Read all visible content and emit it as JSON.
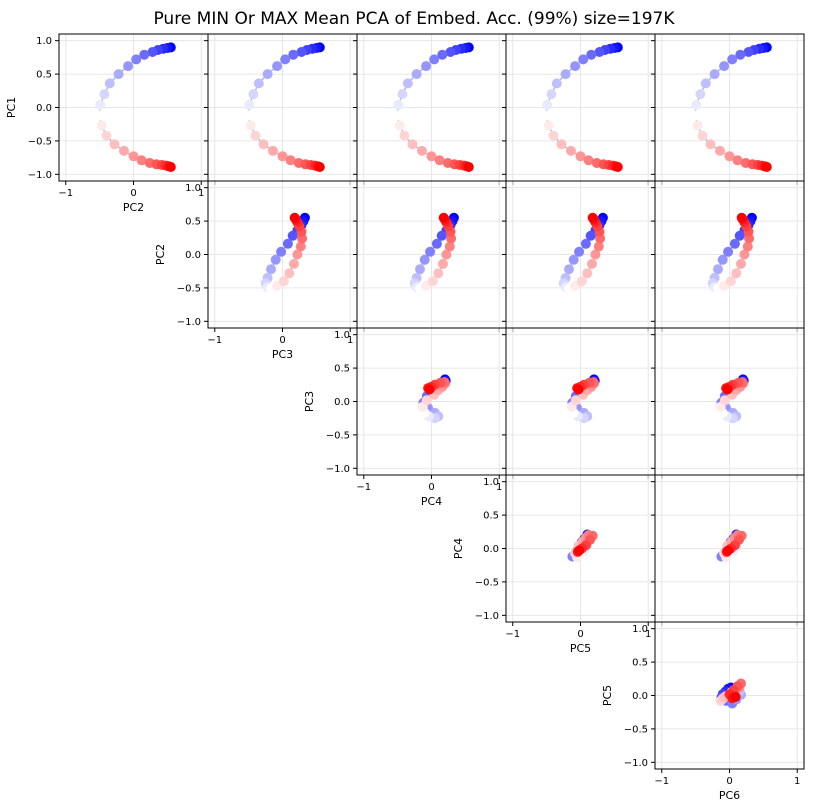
{
  "chart_data": {
    "type": "scatter",
    "title": "Pure MIN Or MAX Mean PCA of Embed. Acc. (99%) size=197K",
    "layout": "pair-plot upper triangle",
    "components": [
      "PC1",
      "PC2",
      "PC3",
      "PC4",
      "PC5",
      "PC6"
    ],
    "axis_range": [
      -1.1,
      1.1
    ],
    "ticks": [
      -1,
      0,
      1
    ],
    "y_ticks": [
      -1.0,
      -0.5,
      0.0,
      0.5,
      1.0
    ],
    "y_tick_labels": [
      "−1.0",
      "−0.5",
      "0.0",
      "0.5",
      "1.0"
    ],
    "x_tick_labels": [
      "−1",
      "0",
      "1"
    ],
    "grid": true,
    "colormap": "bwr (blue → white → red along sequence)",
    "colors": {
      "start": "#0000ff",
      "middle": "#ffffff",
      "end": "#ff0000",
      "line": "#8fb4d4",
      "grid": "#e6e6e6"
    },
    "points": {
      "PC1": [
        0.9,
        0.89,
        0.88,
        0.86,
        0.83,
        0.79,
        0.72,
        0.62,
        0.5,
        0.36,
        0.2,
        0.04,
        -0.12,
        -0.27,
        -0.42,
        -0.55,
        -0.65,
        -0.73,
        -0.79,
        -0.83,
        -0.85,
        -0.86,
        -0.87,
        -0.88,
        -0.89
      ],
      "PC2": [
        0.55,
        0.5,
        0.44,
        0.36,
        0.28,
        0.16,
        0.04,
        -0.08,
        -0.22,
        -0.35,
        -0.43,
        -0.49,
        -0.51,
        -0.47,
        -0.4,
        -0.28,
        -0.14,
        0.0,
        0.12,
        0.24,
        0.34,
        0.42,
        0.48,
        0.52,
        0.55
      ],
      "PC3": [
        0.33,
        0.31,
        0.28,
        0.22,
        0.15,
        0.08,
        -0.02,
        -0.1,
        -0.17,
        -0.22,
        -0.25,
        -0.22,
        -0.17,
        -0.08,
        0.02,
        0.1,
        0.17,
        0.22,
        0.27,
        0.29,
        0.28,
        0.25,
        0.22,
        0.2,
        0.18
      ],
      "PC4": [
        0.2,
        0.21,
        0.15,
        0.1,
        0.01,
        -0.07,
        -0.12,
        -0.05,
        0.05,
        0.1,
        0.05,
        -0.04,
        -0.1,
        -0.13,
        -0.07,
        0.04,
        0.1,
        0.16,
        0.2,
        0.19,
        0.13,
        0.05,
        0.0,
        -0.05,
        -0.03
      ],
      "PC5": [
        0.12,
        0.1,
        0.06,
        0.02,
        -0.03,
        -0.08,
        -0.12,
        -0.06,
        0.01,
        0.06,
        0.1,
        0.05,
        -0.01,
        -0.05,
        -0.08,
        -0.03,
        0.03,
        0.08,
        0.12,
        0.18,
        0.14,
        0.08,
        0.02,
        -0.04,
        -0.02
      ],
      "PC6": [
        0.02,
        -0.02,
        -0.06,
        -0.1,
        -0.12,
        -0.05,
        0.04,
        0.1,
        0.17,
        0.15,
        0.1,
        0.03,
        -0.05,
        -0.1,
        -0.13,
        -0.08,
        0.02,
        0.08,
        0.14,
        0.17,
        0.12,
        0.06,
        0.0,
        0.04,
        0.09
      ]
    }
  }
}
